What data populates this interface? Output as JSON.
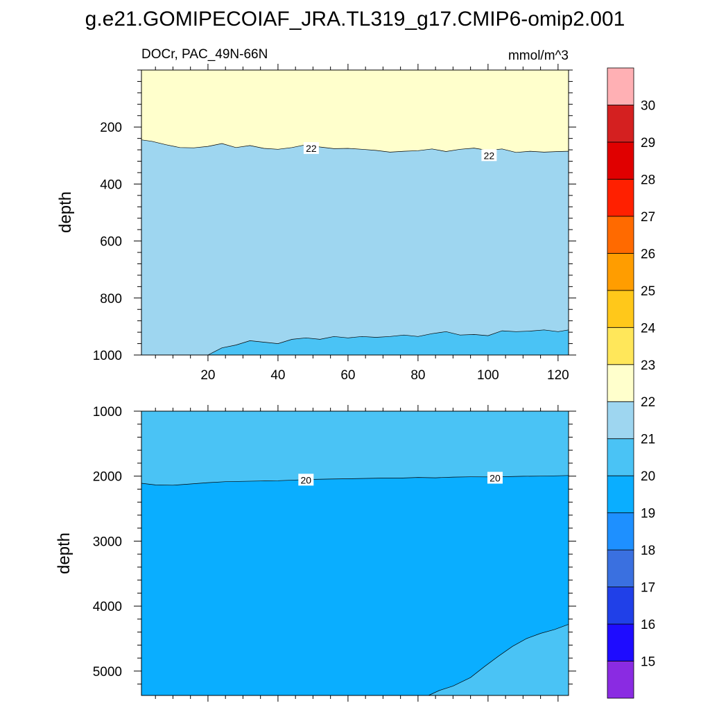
{
  "chart_data": {
    "type": "contour",
    "title": "g.e21.GOMIPECOIAF_JRA.TL319_g17.CMIP6-omip2.001",
    "subtitle_left": "DOCr, PAC_49N-66N",
    "units": "mmol/m^3",
    "colorbar": {
      "levels": [
        15,
        16,
        17,
        18,
        19,
        20,
        21,
        22,
        23,
        24,
        25,
        26,
        27,
        28,
        29,
        30
      ],
      "labels": [
        "15",
        "16",
        "17",
        "18",
        "19",
        "20",
        "21",
        "22",
        "23",
        "24",
        "25",
        "26",
        "27",
        "28",
        "29",
        "30"
      ],
      "colors": [
        "#8a2be2",
        "#1e0cff",
        "#2040e8",
        "#3a70e0",
        "#1e90ff",
        "#0aaeff",
        "#4ac3f5",
        "#9ed6f0",
        "#ffffcc",
        "#ffe75a",
        "#ffc81a",
        "#ff9d00",
        "#ff6a00",
        "#ff2000",
        "#e00000",
        "#d42020",
        "#ffb0b4"
      ]
    },
    "panels": [
      {
        "name": "upper",
        "ylabel": "depth",
        "xlim": [
          1,
          123
        ],
        "ylim": [
          0,
          1000
        ],
        "x_ticks": [
          20,
          40,
          60,
          80,
          100,
          120
        ],
        "x_tick_labels": [
          "20",
          "40",
          "60",
          "80",
          "100",
          "120"
        ],
        "y_ticks": [
          200,
          400,
          600,
          800,
          1000
        ],
        "y_tick_labels": [
          "200",
          "400",
          "600",
          "800",
          "1000"
        ],
        "background_fill": "#9ed6f0",
        "regions": [
          {
            "level": "22-23",
            "fill": "#ffffcc",
            "bound": "above",
            "line": "contour_22"
          },
          {
            "level": "20-21",
            "fill": "#4ac3f5",
            "bound": "below",
            "line": "contour_21"
          }
        ],
        "contours": {
          "contour_22": {
            "value": 22,
            "x": [
              1,
              4,
              8,
              12,
              16,
              20,
              24,
              28,
              32,
              36,
              40,
              44,
              48,
              52,
              56,
              60,
              64,
              68,
              72,
              76,
              80,
              84,
              88,
              92,
              96,
              100,
              104,
              108,
              112,
              116,
              120,
              123
            ],
            "y": [
              245,
              250,
              262,
              272,
              273,
              268,
              258,
              272,
              265,
              275,
              278,
              272,
              262,
              270,
              276,
              275,
              278,
              282,
              288,
              285,
              283,
              277,
              286,
              278,
              274,
              282,
              277,
              289,
              285,
              288,
              286,
              285
            ]
          },
          "contour_21": {
            "value": 21,
            "x": [
              20,
              24,
              28,
              32,
              36,
              40,
              44,
              48,
              52,
              56,
              60,
              64,
              68,
              72,
              76,
              80,
              84,
              88,
              92,
              96,
              100,
              104,
              108,
              112,
              116,
              120,
              123
            ],
            "y": [
              1000,
              975,
              965,
              950,
              955,
              960,
              945,
              940,
              945,
              935,
              940,
              935,
              938,
              935,
              930,
              935,
              925,
              918,
              930,
              928,
              932,
              915,
              918,
              916,
              912,
              918,
              912
            ]
          }
        },
        "contour_labels": [
          {
            "text": "22",
            "x": 49.5,
            "y": 275
          },
          {
            "text": "22",
            "x": 100.3,
            "y": 300
          }
        ]
      },
      {
        "name": "lower",
        "ylabel": "depth",
        "xlim": [
          1,
          123
        ],
        "ylim": [
          1000,
          5375
        ],
        "x_ticks": [
          20,
          40,
          60,
          80,
          100,
          120
        ],
        "y_ticks": [
          1000,
          2000,
          3000,
          4000,
          5000
        ],
        "y_tick_labels": [
          "1000",
          "2000",
          "3000",
          "4000",
          "5000"
        ],
        "background_fill": "#0aaeff",
        "regions": [
          {
            "level": "20-21",
            "fill": "#4ac3f5",
            "bound": "above",
            "line": "contour_20"
          },
          {
            "level": "20-21",
            "fill": "#4ac3f5",
            "bound": "below",
            "line": "contour_20_deep"
          }
        ],
        "contours": {
          "contour_20": {
            "value": 20,
            "x": [
              1,
              5,
              10,
              15,
              20,
              25,
              30,
              35,
              40,
              45,
              50,
              55,
              60,
              65,
              70,
              75,
              80,
              85,
              90,
              95,
              100,
              105,
              110,
              115,
              120,
              123
            ],
            "y": [
              2110,
              2135,
              2140,
              2120,
              2100,
              2085,
              2080,
              2075,
              2070,
              2060,
              2050,
              2045,
              2040,
              2035,
              2030,
              2030,
              2020,
              2025,
              2015,
              2010,
              2012,
              2008,
              2002,
              2000,
              1995,
              1990
            ]
          },
          "contour_20_deep": {
            "value": 20,
            "x": [
              83,
              86,
              90,
              95,
              99,
              103,
              107,
              111,
              115,
              119,
              123
            ],
            "y": [
              5375,
              5300,
              5230,
              5100,
              4930,
              4770,
              4620,
              4500,
              4420,
              4360,
              4280
            ]
          }
        },
        "contour_labels": [
          {
            "text": "20",
            "x": 48,
            "y": 2060
          },
          {
            "text": "20",
            "x": 102,
            "y": 2030
          }
        ]
      }
    ]
  }
}
